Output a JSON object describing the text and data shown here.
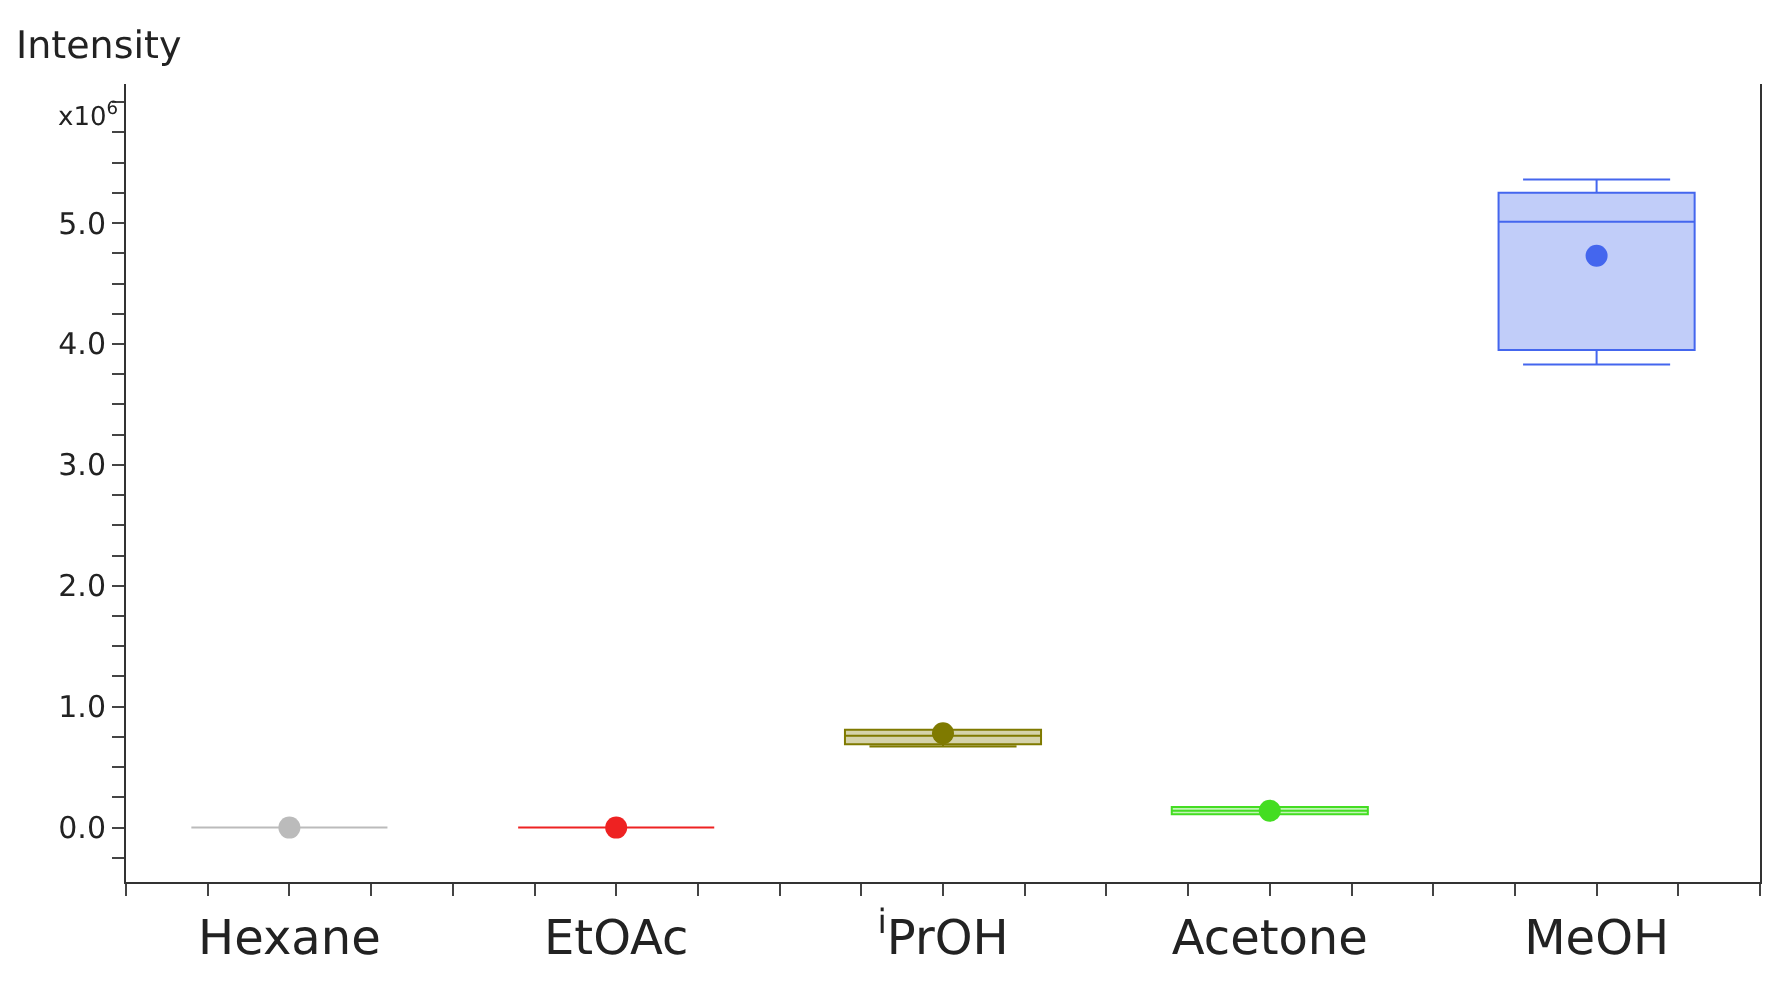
{
  "chart_data": {
    "type": "box",
    "ylabel": "Intensity",
    "annotations": [
      "x10$^{6}$"
    ],
    "categories": [
      "Hexane",
      "EtOAc",
      "$^{i}$PrOH",
      "Acetone",
      "MeOH"
    ],
    "boxes": [
      {
        "low": 0,
        "q1": 0,
        "median": 0,
        "q3": 0,
        "high": 0,
        "mean": 0
      },
      {
        "low": 0,
        "q1": 0,
        "median": 0,
        "q3": 0,
        "high": 0,
        "mean": 0
      },
      {
        "low": 0.67,
        "q1": 0.69,
        "median": 0.76,
        "q3": 0.81,
        "high": 0.81,
        "mean": 0.78
      },
      {
        "low": 0.11,
        "q1": 0.11,
        "median": 0.14,
        "q3": 0.17,
        "high": 0.17,
        "mean": 0.14
      },
      {
        "low": 3.83,
        "q1": 3.95,
        "median": 5.01,
        "q3": 5.25,
        "high": 5.36,
        "mean": 4.73
      }
    ],
    "colors": [
      "#bbbbbb",
      "#ee2222",
      "#7f7a00",
      "#44dd22",
      "#4466ee"
    ],
    "ylim": [
      -0.45,
      6.15
    ],
    "yticks": [
      {
        "value": -0.25,
        "label": null
      },
      {
        "value": 0,
        "label": "0.0"
      },
      {
        "value": 0.25,
        "label": null
      },
      {
        "value": 0.5,
        "label": null
      },
      {
        "value": 0.75,
        "label": null
      },
      {
        "value": 1,
        "label": "1.0"
      },
      {
        "value": 1.25,
        "label": null
      },
      {
        "value": 1.5,
        "label": null
      },
      {
        "value": 1.75,
        "label": null
      },
      {
        "value": 2,
        "label": "2.0"
      },
      {
        "value": 2.25,
        "label": null
      },
      {
        "value": 2.5,
        "label": null
      },
      {
        "value": 2.75,
        "label": null
      },
      {
        "value": 3,
        "label": "3.0"
      },
      {
        "value": 3.25,
        "label": null
      },
      {
        "value": 3.5,
        "label": null
      },
      {
        "value": 3.75,
        "label": null
      },
      {
        "value": 4,
        "label": "4.0"
      },
      {
        "value": 4.25,
        "label": null
      },
      {
        "value": 4.5,
        "label": null
      },
      {
        "value": 4.75,
        "label": null
      },
      {
        "value": 5,
        "label": "5.0"
      },
      {
        "value": 5.25,
        "label": null
      },
      {
        "value": 5.5,
        "label": null
      },
      {
        "value": 5.75,
        "label": null
      },
      {
        "value": 6,
        "label": null
      }
    ],
    "marker": "circle"
  }
}
